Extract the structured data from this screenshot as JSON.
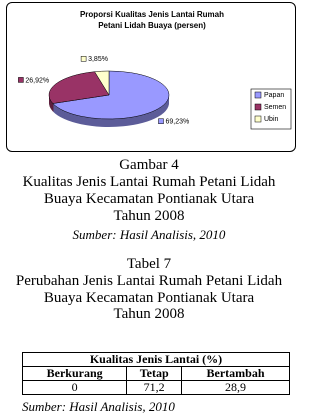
{
  "chart_data": {
    "type": "pie",
    "title": "Proporsi Kualitas Jenis Lantai Rumah Petani Lidah Buaya (persen)",
    "categories": [
      "Papan",
      "Semen",
      "Ubin"
    ],
    "values": [
      69.23,
      26.92,
      3.85
    ],
    "value_labels": [
      "69,23%",
      "26,92%",
      "3,85%"
    ],
    "colors": [
      "#9999ff",
      "#993366",
      "#ffffcc"
    ],
    "legend": "right"
  },
  "figure": {
    "label": "Gambar 4",
    "lines": [
      "Kualitas Jenis Lantai Rumah Petani Lidah",
      "Buaya Kecamatan Pontianak Utara",
      "Tahun 2008"
    ],
    "source": "Sumber: Hasil Analisis, 2010"
  },
  "table_caption": {
    "label": "Tabel 7",
    "lines": [
      "Perubahan Jenis Lantai Rumah Petani Lidah",
      "Buaya Kecamatan Pontianak Utara",
      "Tahun 2008"
    ]
  },
  "table": {
    "group_header": "Kualitas Jenis Lantai (%)",
    "columns": [
      "Berkurang",
      "Tetap",
      "Bertambah"
    ],
    "rows": [
      [
        "0",
        "71,2",
        "28,9"
      ]
    ]
  },
  "source": "Sumber: Hasil Analisis, 2010"
}
